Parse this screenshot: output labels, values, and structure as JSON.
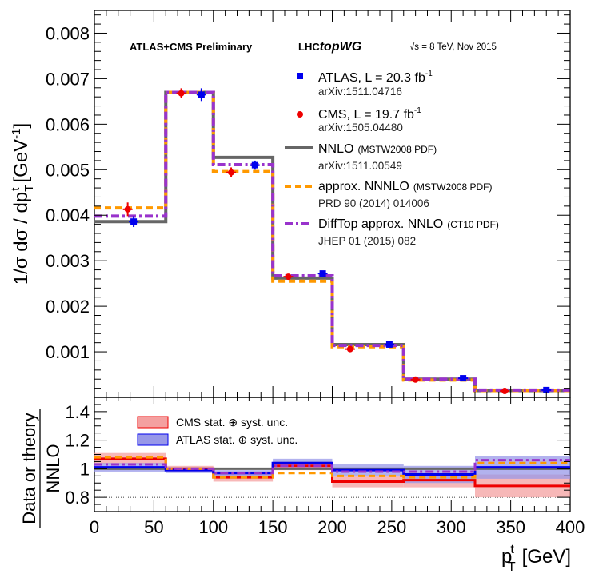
{
  "header": {
    "collab": "ATLAS+CMS Preliminary",
    "lhc_prefix": "LHC",
    "lhc_suffix": "topWG",
    "energy": "√s = 8 TeV, Nov 2015"
  },
  "axes": {
    "ylabel_main": "1/σ dσ / dp",
    "ylabel_main_sub": "T",
    "ylabel_main_sup": "t",
    "ylabel_main_unit": "[GeV",
    "ylabel_main_unit_sup": "-1",
    "ylabel_main_close": "]",
    "ylabel_ratio_top": "Data or theory",
    "ylabel_ratio_bottom": "NNLO",
    "xlabel": "p",
    "xlabel_sub": "T",
    "xlabel_sup": "t",
    "xlabel_unit": "[GeV]",
    "x_ticks": [
      "0",
      "50",
      "100",
      "150",
      "200",
      "250",
      "300",
      "350",
      "400"
    ],
    "y_ticks_main": [
      "0.001",
      "0.002",
      "0.003",
      "0.004",
      "0.005",
      "0.006",
      "0.007",
      "0.008"
    ],
    "y_ticks_ratio": [
      "0.8",
      "1",
      "1.2",
      "1.4"
    ]
  },
  "legend": {
    "atlas_label": "ATLAS, L = 20.3 fb",
    "atlas_sup": "-1",
    "atlas_ref": "arXiv:1511.04716",
    "cms_label": "CMS, L = 19.7 fb",
    "cms_sup": "-1",
    "cms_ref": "arXiv:1505.04480",
    "nnlo_label": "NNLO",
    "nnlo_pdf": "(MSTW2008 PDF)",
    "nnlo_ref": "arXiv:1511.00549",
    "annnlo_label": "approx. NNNLO",
    "annnlo_pdf": "(MSTW2008 PDF)",
    "annnlo_ref": "PRD 90 (2014) 014006",
    "difftop_label": "DiffTop approx. NNLO",
    "difftop_pdf": "(CT10 PDF)",
    "difftop_ref": "JHEP 01 (2015) 082",
    "cms_band": "CMS stat. ⊕ syst. unc.",
    "atlas_band": "ATLAS stat. ⊕ syst. unc."
  },
  "colors": {
    "atlas": "#0000ee",
    "cms": "#ee0000",
    "nnlo": "#666666",
    "annnlo": "#ff9900",
    "difftop": "#9933cc",
    "cms_band": "#f4a0a0",
    "atlas_band": "#9898e8"
  },
  "chart_data": [
    {
      "type": "line",
      "panel": "main",
      "xlim": [
        0,
        400
      ],
      "ylim": [
        0,
        0.0085
      ],
      "bin_edges": [
        0,
        60,
        100,
        150,
        200,
        260,
        320,
        400
      ],
      "theory": [
        {
          "name": "NNLO",
          "values": [
            0.00386,
            0.0067,
            0.00527,
            0.00262,
            0.00116,
            0.0004,
            0.00015
          ]
        },
        {
          "name": "approx. NNNLO",
          "values": [
            0.00416,
            0.0067,
            0.00496,
            0.00255,
            0.00111,
            0.00038,
            0.00015
          ]
        },
        {
          "name": "DiffTop approx. NNLO",
          "values": [
            0.00398,
            0.0067,
            0.00511,
            0.00267,
            0.00114,
            0.0004,
            0.00016
          ]
        }
      ],
      "data_series": [
        {
          "name": "ATLAS",
          "x": [
            33,
            90,
            135,
            192,
            248,
            310,
            380
          ],
          "y": [
            0.00386,
            0.00665,
            0.0051,
            0.00272,
            0.00116,
            0.00042,
            0.00016
          ],
          "err": [
            0.00012,
            0.00014,
            0.0001,
            4e-05,
            2e-05,
            1e-05,
            1e-05
          ]
        },
        {
          "name": "CMS",
          "x": [
            28,
            73,
            115,
            163,
            215,
            270,
            345
          ],
          "y": [
            0.00413,
            0.00668,
            0.00494,
            0.00265,
            0.00106,
            0.00039,
            0.00014
          ],
          "err": [
            0.00015,
            0.00011,
            0.00011,
            5e-05,
            2e-05,
            1e-05,
            1e-05
          ]
        }
      ]
    },
    {
      "type": "line",
      "panel": "ratio",
      "xlim": [
        0,
        400
      ],
      "ylim": [
        0.7,
        1.5
      ],
      "bin_edges": [
        0,
        60,
        100,
        150,
        200,
        260,
        320,
        400
      ],
      "series": [
        {
          "name": "CMS",
          "values": [
            1.07,
            1.0,
            0.94,
            1.02,
            0.91,
            0.92,
            0.88
          ],
          "band": [
            0.04,
            0.02,
            0.03,
            0.03,
            0.04,
            0.05,
            0.08
          ]
        },
        {
          "name": "ATLAS",
          "values": [
            1.01,
            0.99,
            0.97,
            1.04,
            0.99,
            0.96,
            1.01
          ],
          "band": [
            0.03,
            0.02,
            0.02,
            0.03,
            0.04,
            0.06,
            0.08
          ]
        },
        {
          "name": "approx. NNNLO",
          "values": [
            1.08,
            1.0,
            0.94,
            0.97,
            0.95,
            0.94,
            1.04
          ]
        },
        {
          "name": "DiffTop approx. NNLO",
          "values": [
            1.03,
            1.0,
            0.97,
            1.02,
            0.98,
            0.98,
            1.06
          ]
        }
      ]
    }
  ]
}
